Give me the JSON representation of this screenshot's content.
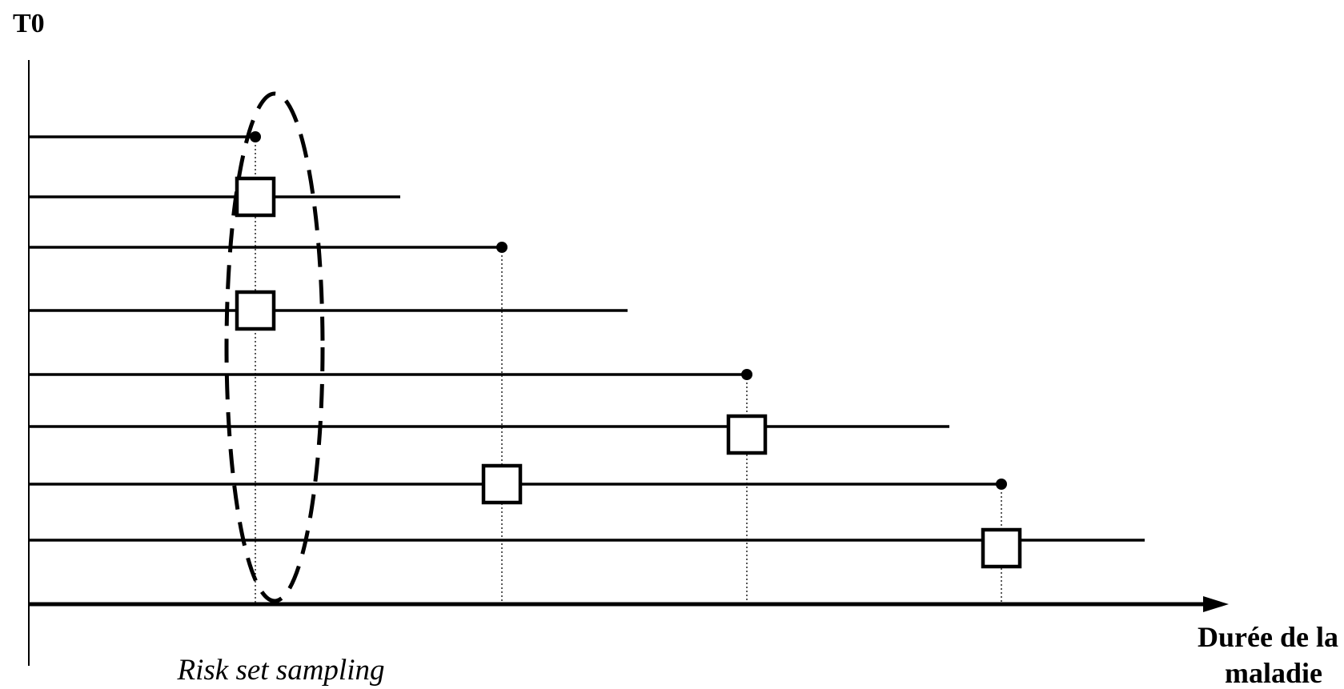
{
  "labels": {
    "origin": "T0",
    "x_axis_line1": "Durée de la",
    "x_axis_line2": "maladie",
    "sampling": "Risk set sampling"
  },
  "subjects": [
    {
      "end": 319,
      "event": "case"
    },
    {
      "end": 500,
      "event": "none"
    },
    {
      "end": 627,
      "event": "case"
    },
    {
      "end": 784,
      "event": "none"
    },
    {
      "end": 933,
      "event": "case"
    },
    {
      "end": 1186,
      "event": "none"
    },
    {
      "end": 1251,
      "event": "case"
    },
    {
      "end": 1430,
      "event": "none"
    }
  ],
  "risk_sets": [
    {
      "time": 319,
      "controls": [
        1,
        3
      ]
    },
    {
      "time": 627,
      "controls": [
        6
      ]
    },
    {
      "time": 933,
      "controls": [
        5
      ]
    },
    {
      "time": 1251,
      "controls": [
        7
      ]
    }
  ],
  "highlighted_risk_set": 0,
  "colors": {
    "ink": "#000000",
    "background": "#ffffff"
  }
}
